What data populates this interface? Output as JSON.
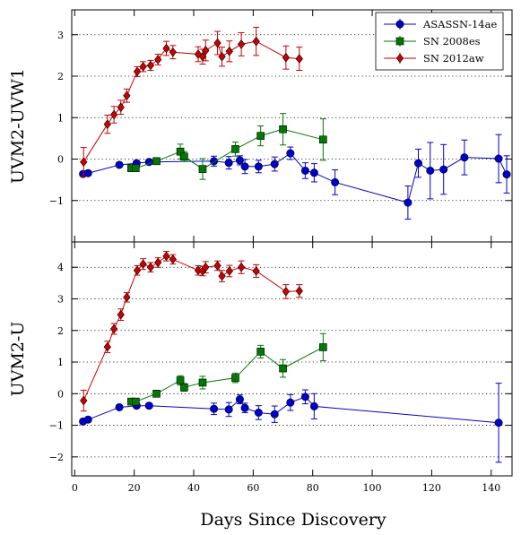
{
  "chart_data": [
    {
      "type": "scatter",
      "ylabel": "UVM2-UVW1",
      "xlim": [
        -1,
        147
      ],
      "ylim": [
        -2,
        3.6
      ],
      "xticks": [
        0,
        20,
        40,
        60,
        80,
        100,
        120,
        140
      ],
      "yticks": [
        -1,
        0,
        1,
        2,
        3
      ],
      "ytick_labels": [
        "−1",
        "0",
        "1",
        "2",
        "3"
      ],
      "grid": "horizontal dotted",
      "legend": "top-right",
      "series": [
        {
          "name": "ASASSN-14ae",
          "color": "#0000cc",
          "marker": "circle",
          "points": [
            {
              "x": 2.8,
              "y": -0.36,
              "err": 0.04
            },
            {
              "x": 4.5,
              "y": -0.34,
              "err": 0.04
            },
            {
              "x": 15.0,
              "y": -0.14,
              "err": 0.05
            },
            {
              "x": 20.8,
              "y": -0.1,
              "err": 0.06
            },
            {
              "x": 25.0,
              "y": -0.07,
              "err": 0.06
            },
            {
              "x": 46.8,
              "y": -0.05,
              "err": 0.12
            },
            {
              "x": 51.8,
              "y": -0.09,
              "err": 0.15
            },
            {
              "x": 55.5,
              "y": -0.03,
              "err": 0.11
            },
            {
              "x": 57.2,
              "y": -0.18,
              "err": 0.17
            },
            {
              "x": 61.8,
              "y": -0.18,
              "err": 0.15
            },
            {
              "x": 67.2,
              "y": -0.12,
              "err": 0.17
            },
            {
              "x": 72.5,
              "y": 0.14,
              "err": 0.15
            },
            {
              "x": 77.5,
              "y": -0.28,
              "err": 0.19
            },
            {
              "x": 80.5,
              "y": -0.33,
              "err": 0.22
            },
            {
              "x": 87.5,
              "y": -0.56,
              "err": 0.3
            },
            {
              "x": 112.0,
              "y": -1.05,
              "err": 0.4
            },
            {
              "x": 115.5,
              "y": -0.1,
              "err": 0.34
            },
            {
              "x": 119.5,
              "y": -0.28,
              "err": 0.68
            },
            {
              "x": 124.0,
              "y": -0.25,
              "err": 0.6
            },
            {
              "x": 131.0,
              "y": 0.04,
              "err": 0.42
            },
            {
              "x": 142.5,
              "y": 0.01,
              "err": 0.58
            },
            {
              "x": 145.2,
              "y": -0.37,
              "err": 0.45
            }
          ]
        },
        {
          "name": "SN 2008es",
          "color": "#007a00",
          "marker": "square",
          "points": [
            {
              "x": 19.0,
              "y": -0.22,
              "err": 0.06
            },
            {
              "x": 20.5,
              "y": -0.22,
              "err": 0.06
            },
            {
              "x": 27.5,
              "y": -0.05,
              "err": 0.04
            },
            {
              "x": 35.5,
              "y": 0.18,
              "err": 0.18
            },
            {
              "x": 36.8,
              "y": 0.06,
              "err": 0.12
            },
            {
              "x": 43.0,
              "y": -0.24,
              "err": 0.25
            },
            {
              "x": 54.0,
              "y": 0.24,
              "err": 0.17
            },
            {
              "x": 62.5,
              "y": 0.56,
              "err": 0.24
            },
            {
              "x": 70.0,
              "y": 0.72,
              "err": 0.38
            },
            {
              "x": 83.5,
              "y": 0.47,
              "err": 0.5
            }
          ]
        },
        {
          "name": "SN 2012aw",
          "color": "#cc0000",
          "marker": "diamond",
          "points": [
            {
              "x": 3.0,
              "y": -0.07,
              "err": 0.35
            },
            {
              "x": 11.0,
              "y": 0.84,
              "err": 0.22
            },
            {
              "x": 13.2,
              "y": 1.07,
              "err": 0.2
            },
            {
              "x": 15.5,
              "y": 1.25,
              "err": 0.17
            },
            {
              "x": 17.5,
              "y": 1.53,
              "err": 0.16
            },
            {
              "x": 21.0,
              "y": 2.11,
              "err": 0.12
            },
            {
              "x": 23.0,
              "y": 2.23,
              "err": 0.12
            },
            {
              "x": 25.5,
              "y": 2.26,
              "err": 0.12
            },
            {
              "x": 28.0,
              "y": 2.4,
              "err": 0.13
            },
            {
              "x": 30.8,
              "y": 2.67,
              "err": 0.17
            },
            {
              "x": 33.0,
              "y": 2.58,
              "err": 0.16
            },
            {
              "x": 41.5,
              "y": 2.53,
              "err": 0.18
            },
            {
              "x": 43.0,
              "y": 2.47,
              "err": 0.18
            },
            {
              "x": 44.0,
              "y": 2.62,
              "err": 0.25
            },
            {
              "x": 48.0,
              "y": 2.8,
              "err": 0.28
            },
            {
              "x": 49.5,
              "y": 2.47,
              "err": 0.23
            },
            {
              "x": 52.0,
              "y": 2.6,
              "err": 0.25
            },
            {
              "x": 56.0,
              "y": 2.77,
              "err": 0.28
            },
            {
              "x": 61.0,
              "y": 2.84,
              "err": 0.34
            },
            {
              "x": 71.0,
              "y": 2.45,
              "err": 0.28
            },
            {
              "x": 75.5,
              "y": 2.42,
              "err": 0.28
            }
          ]
        }
      ]
    },
    {
      "type": "scatter",
      "xlabel": "Days Since Discovery",
      "ylabel": "UVM2-U",
      "xlim": [
        -1,
        147
      ],
      "ylim": [
        -2.6,
        4.8
      ],
      "xticks": [
        0,
        20,
        40,
        60,
        80,
        100,
        120,
        140
      ],
      "xtick_labels": [
        "0",
        "20",
        "40",
        "60",
        "80",
        "100",
        "120",
        "140"
      ],
      "yticks": [
        -2,
        -1,
        0,
        1,
        2,
        3,
        4
      ],
      "ytick_labels": [
        "−2",
        "−1",
        "0",
        "1",
        "2",
        "3",
        "4"
      ],
      "grid": "horizontal dotted",
      "series": [
        {
          "name": "ASASSN-14ae",
          "color": "#0000cc",
          "marker": "circle",
          "points": [
            {
              "x": 2.8,
              "y": -0.88,
              "err": 0.05
            },
            {
              "x": 4.5,
              "y": -0.82,
              "err": 0.05
            },
            {
              "x": 15.0,
              "y": -0.43,
              "err": 0.05
            },
            {
              "x": 20.8,
              "y": -0.38,
              "err": 0.07
            },
            {
              "x": 25.0,
              "y": -0.38,
              "err": 0.07
            },
            {
              "x": 46.8,
              "y": -0.48,
              "err": 0.18
            },
            {
              "x": 51.8,
              "y": -0.5,
              "err": 0.22
            },
            {
              "x": 55.5,
              "y": -0.18,
              "err": 0.14
            },
            {
              "x": 57.2,
              "y": -0.45,
              "err": 0.15
            },
            {
              "x": 61.8,
              "y": -0.6,
              "err": 0.22
            },
            {
              "x": 67.2,
              "y": -0.65,
              "err": 0.26
            },
            {
              "x": 72.5,
              "y": -0.28,
              "err": 0.25
            },
            {
              "x": 77.5,
              "y": -0.1,
              "err": 0.22
            },
            {
              "x": 80.5,
              "y": -0.4,
              "err": 0.4
            },
            {
              "x": 142.5,
              "y": -0.92,
              "err": 1.25
            }
          ]
        },
        {
          "name": "SN 2008es",
          "color": "#007a00",
          "marker": "square",
          "points": [
            {
              "x": 19.0,
              "y": -0.25,
              "err": 0.06
            },
            {
              "x": 20.5,
              "y": -0.25,
              "err": 0.06
            },
            {
              "x": 27.5,
              "y": 0.0,
              "err": 0.05
            },
            {
              "x": 35.5,
              "y": 0.42,
              "err": 0.15
            },
            {
              "x": 36.8,
              "y": 0.2,
              "err": 0.12
            },
            {
              "x": 43.0,
              "y": 0.35,
              "err": 0.2
            },
            {
              "x": 54.0,
              "y": 0.5,
              "err": 0.15
            },
            {
              "x": 62.5,
              "y": 1.33,
              "err": 0.2
            },
            {
              "x": 70.0,
              "y": 0.8,
              "err": 0.28
            },
            {
              "x": 83.5,
              "y": 1.47,
              "err": 0.43
            }
          ]
        },
        {
          "name": "SN 2012aw",
          "color": "#cc0000",
          "marker": "diamond",
          "points": [
            {
              "x": 3.0,
              "y": -0.22,
              "err": 0.33
            },
            {
              "x": 11.0,
              "y": 1.48,
              "err": 0.18
            },
            {
              "x": 13.2,
              "y": 2.05,
              "err": 0.17
            },
            {
              "x": 15.5,
              "y": 2.5,
              "err": 0.18
            },
            {
              "x": 17.5,
              "y": 3.05,
              "err": 0.15
            },
            {
              "x": 21.0,
              "y": 3.9,
              "err": 0.15
            },
            {
              "x": 23.0,
              "y": 4.1,
              "err": 0.17
            },
            {
              "x": 25.5,
              "y": 4.0,
              "err": 0.15
            },
            {
              "x": 28.0,
              "y": 4.15,
              "err": 0.15
            },
            {
              "x": 30.8,
              "y": 4.35,
              "err": 0.15
            },
            {
              "x": 33.0,
              "y": 4.25,
              "err": 0.15
            },
            {
              "x": 41.5,
              "y": 3.9,
              "err": 0.15
            },
            {
              "x": 43.0,
              "y": 3.88,
              "err": 0.15
            },
            {
              "x": 44.0,
              "y": 4.0,
              "err": 0.18
            },
            {
              "x": 48.0,
              "y": 4.05,
              "err": 0.15
            },
            {
              "x": 49.5,
              "y": 3.72,
              "err": 0.18
            },
            {
              "x": 52.0,
              "y": 3.88,
              "err": 0.18
            },
            {
              "x": 56.0,
              "y": 4.0,
              "err": 0.2
            },
            {
              "x": 61.0,
              "y": 3.88,
              "err": 0.2
            },
            {
              "x": 71.0,
              "y": 3.23,
              "err": 0.22
            },
            {
              "x": 75.5,
              "y": 3.25,
              "err": 0.2
            }
          ]
        }
      ]
    }
  ]
}
